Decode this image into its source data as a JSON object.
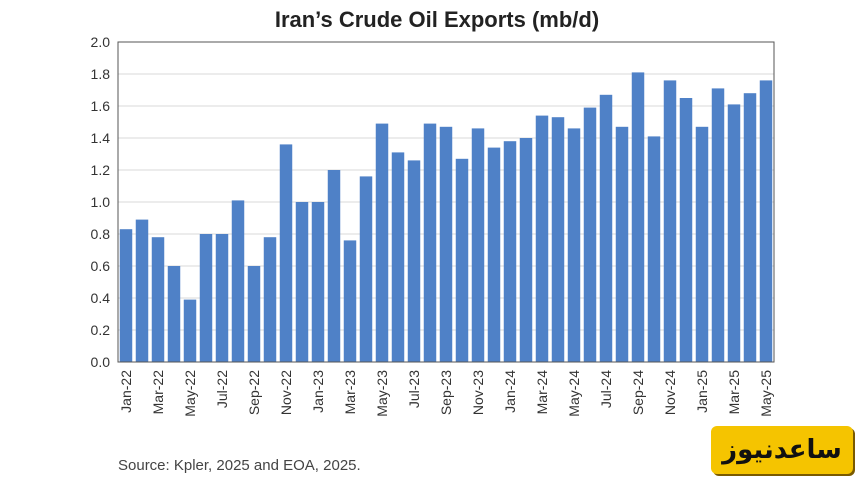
{
  "chart_data": {
    "type": "bar",
    "title": "Iran’s Crude Oil Exports (mb/d)",
    "xlabel": "",
    "ylabel": "",
    "ylim": [
      0,
      2.0
    ],
    "yticks": [
      "0.0",
      "0.2",
      "0.4",
      "0.6",
      "0.8",
      "1.0",
      "1.2",
      "1.4",
      "1.6",
      "1.8",
      "2.0"
    ],
    "grid": true,
    "legend": "none",
    "bar_color": "#4f81c7",
    "categories": [
      "Jan-22",
      "Feb-22",
      "Mar-22",
      "Apr-22",
      "May-22",
      "Jun-22",
      "Jul-22",
      "Aug-22",
      "Sep-22",
      "Oct-22",
      "Nov-22",
      "Dec-22",
      "Jan-23",
      "Feb-23",
      "Mar-23",
      "Apr-23",
      "May-23",
      "Jun-23",
      "Jul-23",
      "Aug-23",
      "Sep-23",
      "Oct-23",
      "Nov-23",
      "Dec-23",
      "Jan-24",
      "Feb-24",
      "Mar-24",
      "Apr-24",
      "May-24",
      "Jun-24",
      "Jul-24",
      "Aug-24",
      "Sep-24",
      "Oct-24",
      "Nov-24",
      "Dec-24",
      "Jan-25",
      "Feb-25",
      "Mar-25",
      "Apr-25",
      "May-25"
    ],
    "tick_labels": [
      "Jan-22",
      "",
      "Mar-22",
      "",
      "May-22",
      "",
      "Jul-22",
      "",
      "Sep-22",
      "",
      "Nov-22",
      "",
      "Jan-23",
      "",
      "Mar-23",
      "",
      "May-23",
      "",
      "Jul-23",
      "",
      "Sep-23",
      "",
      "Nov-23",
      "",
      "Jan-24",
      "",
      "Mar-24",
      "",
      "May-24",
      "",
      "Jul-24",
      "",
      "Sep-24",
      "",
      "Nov-24",
      "",
      "Jan-25",
      "",
      "Mar-25",
      "",
      "May-25"
    ],
    "values": [
      0.83,
      0.89,
      0.78,
      0.6,
      0.39,
      0.8,
      0.8,
      1.01,
      0.6,
      0.78,
      1.36,
      1.0,
      1.0,
      1.2,
      0.76,
      1.16,
      1.49,
      1.31,
      1.26,
      1.49,
      1.47,
      1.27,
      1.46,
      1.34,
      1.38,
      1.4,
      1.54,
      1.53,
      1.46,
      1.59,
      1.67,
      1.47,
      1.81,
      1.41,
      1.76,
      1.65,
      1.47,
      1.71,
      1.61,
      1.68,
      1.76
    ],
    "source": "Source: Kpler, 2025 and EOA, 2025."
  },
  "watermark": {
    "text": "ساعدنیوز",
    "color": "#f5c400"
  }
}
